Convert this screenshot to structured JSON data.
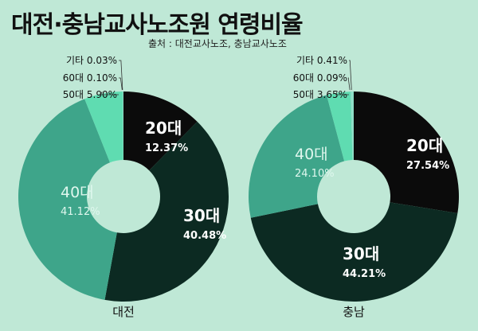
{
  "title": "대전·충남교사노조원 연령비율",
  "source": "출처 : 대전교사노조, 충남교사노조",
  "colors": {
    "20대": "#0b0b0b",
    "30대": "#0c2a22",
    "40대": "#3ea58a",
    "50대": "#5fdcb1",
    "60대": "#7fd3bd",
    "기타": "#8fe0c8"
  },
  "chart_data": [
    {
      "type": "pie",
      "subtype": "donut",
      "name": "대전",
      "categories": [
        "20대",
        "30대",
        "40대",
        "50대",
        "60대",
        "기타"
      ],
      "values": [
        12.37,
        40.48,
        41.12,
        5.9,
        0.1,
        0.03
      ],
      "labels": [
        "20대 12.37%",
        "30대 40.48%",
        "40대 41.12%",
        "50대 5.90%",
        "60대 0.10%",
        "기타 0.03%"
      ]
    },
    {
      "type": "pie",
      "subtype": "donut",
      "name": "충남",
      "categories": [
        "20대",
        "30대",
        "40대",
        "50대",
        "60대",
        "기타"
      ],
      "values": [
        27.54,
        44.21,
        24.1,
        3.65,
        0.09,
        0.41
      ],
      "labels": [
        "20대 27.54%",
        "30대 44.21%",
        "40대 24.10%",
        "50대 3.65%",
        "60대 0.09%",
        "기타 0.41%"
      ]
    }
  ]
}
